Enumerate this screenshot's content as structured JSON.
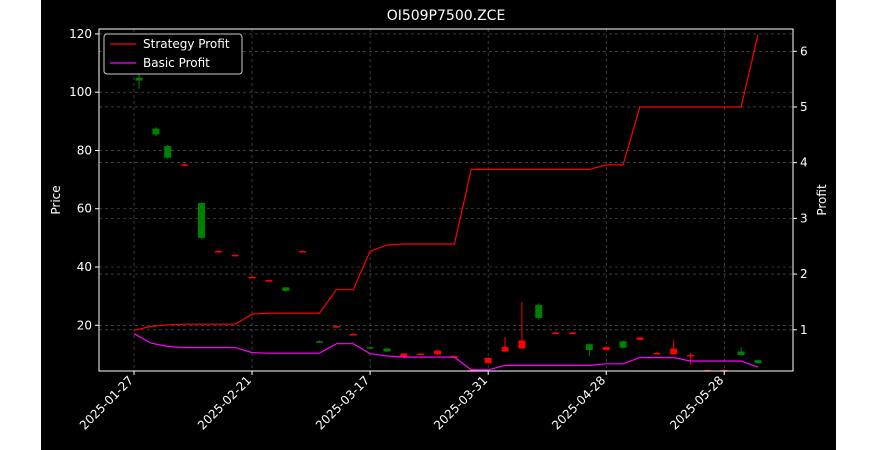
{
  "chart_data": {
    "type": "candlestick",
    "title": "OI509P7500.ZCE",
    "xlabel": "",
    "ylabel": "Price",
    "y2label": "Profit",
    "ylim": [
      4.3,
      121.7
    ],
    "y2lim": [
      0.26,
      6.4
    ],
    "yticks": [
      20,
      40,
      60,
      80,
      100,
      120
    ],
    "y2ticks": [
      1,
      2,
      3,
      4,
      5,
      6
    ],
    "x_tick_labels": [
      "2025-01-27",
      "2025-02-21",
      "2025-03-17",
      "2025-03-31",
      "2025-04-28",
      "2025-05-28"
    ],
    "grid": true,
    "legend_position": "top-left",
    "colors": {
      "background": "#000000",
      "axes_text": "#ffffff",
      "grid": "#7a7a7a",
      "up": "#008000",
      "down": "#ff0000",
      "strategy": "#ff0000",
      "basic": "#ff00ff"
    },
    "candles": [
      {
        "o": 105,
        "h": 108,
        "l": 101,
        "c": 104,
        "dir": "up"
      },
      {
        "o": 87.5,
        "h": 88,
        "l": 85,
        "c": 85.5,
        "dir": "up"
      },
      {
        "o": 81.5,
        "h": 82,
        "l": 77,
        "c": 77.5,
        "dir": "up"
      },
      {
        "o": 75.2,
        "h": 75.5,
        "l": 74.8,
        "c": 75.2,
        "dir": "down"
      },
      {
        "o": 62,
        "h": 62,
        "l": 49.5,
        "c": 50,
        "dir": "up"
      },
      {
        "o": 45.5,
        "h": 45.8,
        "l": 45.2,
        "c": 45.5,
        "dir": "down"
      },
      {
        "o": 43.8,
        "h": 44.3,
        "l": 43.5,
        "c": 44.2,
        "dir": "down"
      },
      {
        "o": 36.5,
        "h": 37,
        "l": 36.2,
        "c": 36.6,
        "dir": "down"
      },
      {
        "o": 35.5,
        "h": 35.8,
        "l": 35.2,
        "c": 35.5,
        "dir": "down"
      },
      {
        "o": 33,
        "h": 33.2,
        "l": 31.5,
        "c": 31.8,
        "dir": "up"
      },
      {
        "o": 45.5,
        "h": 45.8,
        "l": 45.2,
        "c": 45.5,
        "dir": "down"
      },
      {
        "o": 14.5,
        "h": 14.8,
        "l": 14,
        "c": 14.2,
        "dir": "up"
      },
      {
        "o": 19.5,
        "h": 20,
        "l": 19.2,
        "c": 19.7,
        "dir": "down"
      },
      {
        "o": 17,
        "h": 17.3,
        "l": 16.8,
        "c": 17,
        "dir": "down"
      },
      {
        "o": 12.5,
        "h": 12.8,
        "l": 12,
        "c": 12.2,
        "dir": "up"
      },
      {
        "o": 12,
        "h": 12.2,
        "l": 10.8,
        "c": 11,
        "dir": "up"
      },
      {
        "o": 9,
        "h": 10.5,
        "l": 8.8,
        "c": 10.3,
        "dir": "down"
      },
      {
        "o": 10.2,
        "h": 10.5,
        "l": 10,
        "c": 10.3,
        "dir": "down"
      },
      {
        "o": 10,
        "h": 11.5,
        "l": 9.8,
        "c": 11.3,
        "dir": "down"
      },
      {
        "o": 9.3,
        "h": 9.6,
        "l": 9.1,
        "c": 9.4,
        "dir": "down"
      },
      {
        "o": 4.5,
        "h": 4.7,
        "l": 4.4,
        "c": 4.6,
        "dir": "down"
      },
      {
        "o": 7,
        "h": 9,
        "l": 6.8,
        "c": 8.8,
        "dir": "down"
      },
      {
        "o": 11,
        "h": 16,
        "l": 10.8,
        "c": 12.5,
        "dir": "down"
      },
      {
        "o": 12,
        "h": 28,
        "l": 12,
        "c": 14.8,
        "dir": "down"
      },
      {
        "o": 27,
        "h": 27.5,
        "l": 22,
        "c": 22.5,
        "dir": "up"
      },
      {
        "o": 17.5,
        "h": 17.8,
        "l": 17.3,
        "c": 17.5,
        "dir": "down"
      },
      {
        "o": 17.5,
        "h": 17.8,
        "l": 17.3,
        "c": 17.5,
        "dir": "down"
      },
      {
        "o": 13.5,
        "h": 13.8,
        "l": 9.5,
        "c": 11.5,
        "dir": "up"
      },
      {
        "o": 11.5,
        "h": 12.8,
        "l": 11.3,
        "c": 12.5,
        "dir": "down"
      },
      {
        "o": 14.5,
        "h": 14.8,
        "l": 12,
        "c": 12.3,
        "dir": "up"
      },
      {
        "o": 15,
        "h": 16,
        "l": 14.8,
        "c": 15.8,
        "dir": "down"
      },
      {
        "o": 10.5,
        "h": 10.8,
        "l": 10.3,
        "c": 10.5,
        "dir": "down"
      },
      {
        "o": 10,
        "h": 15,
        "l": 9.8,
        "c": 12,
        "dir": "down"
      },
      {
        "o": 9.5,
        "h": 10.5,
        "l": 6.5,
        "c": 9.8,
        "dir": "down"
      },
      {
        "o": 4.5,
        "h": 4.8,
        "l": 4.3,
        "c": 4.6,
        "dir": "down"
      },
      {
        "o": 4.3,
        "h": 5,
        "l": 4.3,
        "c": 4.6,
        "dir": "down"
      },
      {
        "o": 11,
        "h": 12.5,
        "l": 9.5,
        "c": 9.8,
        "dir": "up"
      },
      {
        "o": 8,
        "h": 8.2,
        "l": 6.8,
        "c": 7,
        "dir": "up"
      }
    ],
    "candle_index_range": [
      0,
      37
    ],
    "x_tick_candle_index": [
      0,
      7,
      14,
      21,
      28,
      35
    ],
    "candle_positions": [
      0.3,
      1.3,
      2.0,
      3.0,
      4.0,
      5.0,
      6.0,
      7.0,
      8.0,
      9.0,
      10.0,
      11.0,
      12.0,
      13.0,
      14.0,
      15.0,
      16.0,
      17.0,
      18.0,
      19.0,
      20.0,
      21.0,
      22.0,
      23.0,
      24.0,
      25.0,
      26.0,
      27.0,
      28.0,
      29.0,
      30.0,
      31.0,
      32.0,
      33.0,
      34.0,
      35.0,
      36.0,
      37.0
    ],
    "series": [
      {
        "name": "Strategy Profit",
        "x": [
          0,
          1,
          2,
          3,
          4,
          5,
          6,
          7,
          8,
          9,
          10,
          11,
          12,
          13,
          14,
          15,
          16,
          17,
          18,
          19,
          20,
          21,
          22,
          23,
          24,
          25,
          26,
          27,
          28,
          29,
          30,
          31,
          32,
          33,
          34,
          35,
          36,
          37
        ],
        "values": [
          0.99,
          1.06,
          1.09,
          1.1,
          1.1,
          1.1,
          1.1,
          1.28,
          1.3,
          1.3,
          1.3,
          1.3,
          1.72,
          1.72,
          2.41,
          2.52,
          2.54,
          2.54,
          2.54,
          2.54,
          3.88,
          3.88,
          3.88,
          3.88,
          3.88,
          3.88,
          3.88,
          3.88,
          3.96,
          3.96,
          5.0,
          5.0,
          5.0,
          5.0,
          5.0,
          5.0,
          5.0,
          6.3
        ]
      },
      {
        "name": "Basic Profit",
        "x": [
          0,
          1,
          2,
          3,
          4,
          5,
          6,
          7,
          8,
          9,
          10,
          11,
          12,
          13,
          14,
          15,
          16,
          17,
          18,
          19,
          20,
          21,
          22,
          23,
          24,
          25,
          26,
          27,
          28,
          29,
          30,
          31,
          32,
          33,
          34,
          35,
          36,
          37
        ],
        "values": [
          0.93,
          0.76,
          0.7,
          0.68,
          0.68,
          0.68,
          0.68,
          0.59,
          0.58,
          0.58,
          0.58,
          0.58,
          0.75,
          0.75,
          0.57,
          0.53,
          0.51,
          0.51,
          0.51,
          0.51,
          0.28,
          0.28,
          0.36,
          0.36,
          0.36,
          0.36,
          0.36,
          0.36,
          0.39,
          0.39,
          0.5,
          0.5,
          0.5,
          0.44,
          0.44,
          0.44,
          0.44,
          0.33
        ]
      }
    ]
  }
}
